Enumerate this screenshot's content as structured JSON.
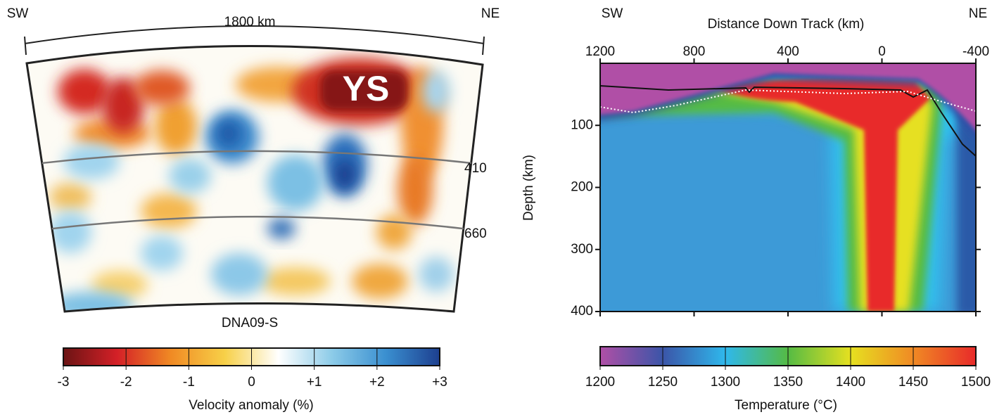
{
  "chart_data": [
    {
      "type": "tomography",
      "labels": {
        "left": "SW",
        "right": "NE"
      },
      "span_label": "1800 km",
      "model": "DNA09-S",
      "feature": "YS",
      "discontinuities": [
        410,
        660
      ],
      "colorbar": {
        "label": "Velocity anomaly (%)",
        "lim": [
          -3,
          3
        ],
        "ticks": [
          -3,
          -2,
          -1,
          0,
          {
            "value": 1,
            "label": "+1"
          },
          {
            "value": 2,
            "label": "+2"
          },
          {
            "value": 3,
            "label": "+3"
          }
        ],
        "colors": [
          "#6b1414",
          "#d42027",
          "#f08a24",
          "#f7d048",
          "#ffffff",
          "#8ccbe8",
          "#3a8fd0",
          "#1d3f8f"
        ]
      }
    },
    {
      "type": "heatmap",
      "labels": {
        "left": "SW",
        "right": "NE"
      },
      "x_label": "Distance Down Track (km)",
      "y_label": "Depth (km)",
      "xlim": [
        1200,
        -400
      ],
      "xticks": [
        1200,
        800,
        400,
        0,
        -400
      ],
      "ylim": [
        0,
        400
      ],
      "yticks": [
        100,
        200,
        300,
        400
      ],
      "colorbar": {
        "label": "Temperature (°C)",
        "lim": [
          1200,
          1500
        ],
        "ticks": [
          1200,
          1250,
          1300,
          1350,
          1400,
          1450,
          1500
        ],
        "colors": [
          "#b04fa6",
          "#3b55a8",
          "#2fb8ec",
          "#55bb44",
          "#e6e020",
          "#f08a24",
          "#e82a2a"
        ]
      }
    }
  ]
}
